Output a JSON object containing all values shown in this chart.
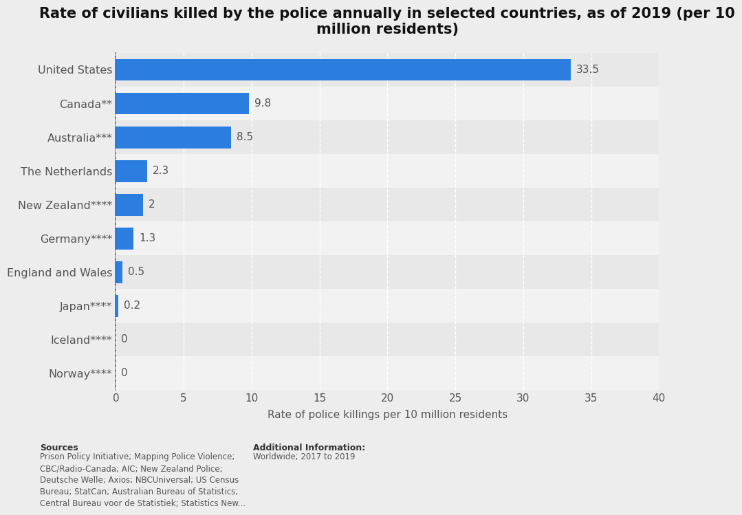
{
  "title": "Rate of civilians killed by the police annually in selected countries, as of 2019 (per 10\nmillion residents)",
  "categories": [
    "United States",
    "Canada**",
    "Australia***",
    "The Netherlands",
    "New Zealand****",
    "Germany****",
    "England and Wales",
    "Japan****",
    "Iceland****",
    "Norway****"
  ],
  "values": [
    33.5,
    9.8,
    8.5,
    2.3,
    2.0,
    1.3,
    0.5,
    0.2,
    0,
    0
  ],
  "bar_color": "#2b7de0",
  "background_color": "#ededed",
  "row_colors": [
    "#e8e8e8",
    "#f2f2f2"
  ],
  "xlabel": "Rate of police killings per 10 million residents",
  "xlim": [
    0,
    40
  ],
  "xticks": [
    0,
    5,
    10,
    15,
    20,
    25,
    30,
    35,
    40
  ],
  "title_fontsize": 15,
  "label_fontsize": 11.5,
  "tick_fontsize": 11,
  "value_fontsize": 11,
  "sources_bold": "Sources",
  "sources_text": "Prison Policy Initiative; Mapping Police Violence;\nCBC/Radio-Canada; AIC; New Zealand Police;\nDeutsche Welle; Axios; NBCUniversal; US Census\nBureau; StatCan; Australian Bureau of Statistics;\nCentral Bureau voor de Statistiek; Statistics New...",
  "additional_bold": "Additional Information:",
  "additional_text": "Worldwide; 2017 to 2019"
}
